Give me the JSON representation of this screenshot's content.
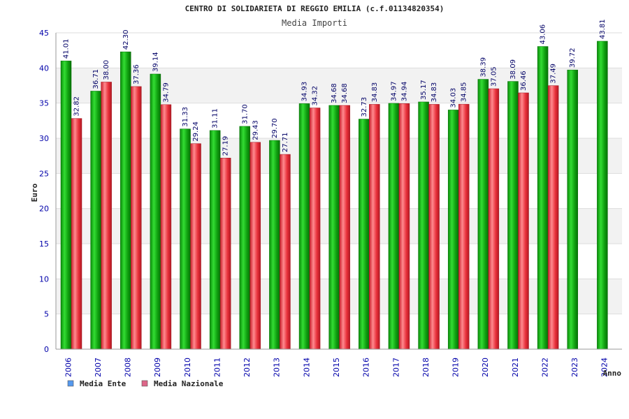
{
  "chart_data": {
    "type": "bar",
    "title": "CENTRO DI SOLIDARIETA DI REGGIO EMILIA (c.f.01134820354)",
    "subtitle": "Media Importi",
    "ylabel": "Euro",
    "xlabel": "Anno",
    "ylim": [
      0,
      45
    ],
    "yticks": [
      0,
      5,
      10,
      15,
      20,
      25,
      30,
      35,
      40,
      45
    ],
    "grid": true,
    "legend_position": "bottom-left",
    "categories": [
      "2006",
      "2007",
      "2008",
      "2009",
      "2010",
      "2011",
      "2012",
      "2013",
      "2014",
      "2015",
      "2016",
      "2017",
      "2018",
      "2019",
      "2020",
      "2021",
      "2022",
      "2023",
      "2024"
    ],
    "series": [
      {
        "name": "Media Ente",
        "color": "#12b012",
        "legend_color": "#5599ee",
        "values": [
          41.01,
          36.71,
          42.3,
          39.14,
          31.33,
          31.11,
          31.7,
          29.7,
          34.93,
          34.68,
          32.73,
          34.97,
          35.17,
          34.03,
          38.39,
          38.09,
          43.06,
          39.72,
          43.81
        ],
        "labels": [
          "41.01",
          "36.71",
          "42.30",
          "39.14",
          "31.33",
          "31.11",
          "31.70",
          "29.70",
          "34.93",
          "34.68",
          "32.73",
          "34.97",
          "35.17",
          "34.03",
          "38.39",
          "38.09",
          "43.06",
          "39.72",
          "43.81"
        ]
      },
      {
        "name": "Media Nazionale",
        "color": "#e8303a",
        "legend_color": "#dd6688",
        "values": [
          32.82,
          38.0,
          37.36,
          34.79,
          29.24,
          27.19,
          29.43,
          27.71,
          34.32,
          34.68,
          34.83,
          34.94,
          34.83,
          34.85,
          37.05,
          36.46,
          37.49,
          null,
          null
        ],
        "labels": [
          "32.82",
          "38.00",
          "37.36",
          "34.79",
          "29.24",
          "27.19",
          "29.43",
          "27.71",
          "34.32",
          "34.68",
          "34.83",
          "34.94",
          "34.83",
          "34.85",
          "37.05",
          "36.46",
          "37.49",
          "",
          ""
        ]
      }
    ]
  }
}
